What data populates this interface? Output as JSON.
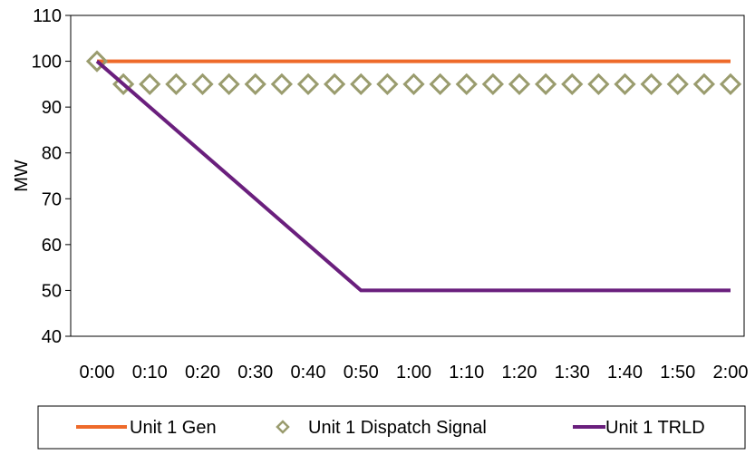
{
  "chart_data": {
    "type": "line",
    "xlabel": "",
    "ylabel": "MW",
    "ylim": [
      40,
      110
    ],
    "yticks": [
      40,
      50,
      60,
      70,
      80,
      90,
      100,
      110
    ],
    "xticks": [
      "0:00",
      "0:10",
      "0:20",
      "0:30",
      "0:40",
      "0:50",
      "1:00",
      "1:10",
      "1:20",
      "1:30",
      "1:40",
      "1:50",
      "2:00"
    ],
    "grid": false,
    "legend_position": "bottom",
    "series": [
      {
        "name": "Unit 1 Gen",
        "style": "line",
        "color": "#EE6A2A",
        "x": [
          "0:00",
          "2:00"
        ],
        "values": [
          100,
          100
        ]
      },
      {
        "name": "Unit 1 Dispatch Signal",
        "style": "marker",
        "marker": "diamond",
        "color": "#9A9C6E",
        "x": [
          "0:00",
          "0:05",
          "0:10",
          "0:15",
          "0:20",
          "0:25",
          "0:30",
          "0:35",
          "0:40",
          "0:45",
          "0:50",
          "0:55",
          "1:00",
          "1:05",
          "1:10",
          "1:15",
          "1:20",
          "1:25",
          "1:30",
          "1:35",
          "1:40",
          "1:45",
          "1:50",
          "1:55",
          "2:00"
        ],
        "values": [
          100,
          95,
          95,
          95,
          95,
          95,
          95,
          95,
          95,
          95,
          95,
          95,
          95,
          95,
          95,
          95,
          95,
          95,
          95,
          95,
          95,
          95,
          95,
          95,
          95
        ]
      },
      {
        "name": "Unit 1 TRLD",
        "style": "line",
        "color": "#6A1F7D",
        "x": [
          "0:00",
          "0:50",
          "2:00"
        ],
        "values": [
          100,
          50,
          50
        ]
      }
    ]
  }
}
